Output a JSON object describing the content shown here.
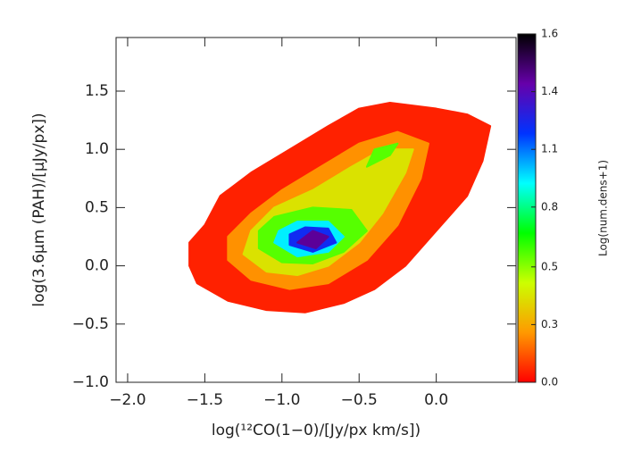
{
  "chart_data": {
    "type": "contour",
    "x_label": "log(¹²CO(1−0)/[Jy/px km/s])",
    "y_label": "log(3.6μm (PAH)/[μJy/px])",
    "colorbar_label": "Log(num.dens+1)",
    "xlim": [
      -2.075,
      0.517
    ],
    "ylim": [
      -1.0,
      1.96
    ],
    "xticks": [
      {
        "value": -2.0,
        "label": "−2.0"
      },
      {
        "value": -1.5,
        "label": "−1.5"
      },
      {
        "value": -1.0,
        "label": "−1.0"
      },
      {
        "value": -0.5,
        "label": "−0.5"
      },
      {
        "value": 0,
        "label": "0.0"
      }
    ],
    "yticks": [
      {
        "value": -1.0,
        "label": "−1.0"
      },
      {
        "value": -0.5,
        "label": "−0.5"
      },
      {
        "value": 0,
        "label": "0.0"
      },
      {
        "value": 0.5,
        "label": "0.5"
      },
      {
        "value": 1.0,
        "label": "1.0"
      },
      {
        "value": 1.5,
        "label": "1.5"
      }
    ],
    "clim": [
      0,
      1.63
    ],
    "cticks": [
      {
        "value": 0,
        "label": "0.0"
      },
      {
        "value": 0.27,
        "label": "0.3"
      },
      {
        "value": 0.54,
        "label": "0.5"
      },
      {
        "value": 0.82,
        "label": "0.8"
      },
      {
        "value": 1.09,
        "label": "1.1"
      },
      {
        "value": 1.36,
        "label": "1.4"
      },
      {
        "value": 1.63,
        "label": "1.6"
      }
    ],
    "colormap": [
      "#ff0000",
      "#ff9900",
      "#ccff00",
      "#00ff00",
      "#00ffff",
      "#0033ff",
      "#6600aa",
      "#000000"
    ],
    "contours": [
      {
        "level": 0.05,
        "x": [
          -1.6,
          -1.55,
          -1.35,
          -1.1,
          -0.85,
          -0.6,
          -0.4,
          -0.2,
          0.0,
          0.2,
          0.3,
          0.35,
          0.2,
          0.0,
          -0.3,
          -0.5,
          -0.7,
          -0.95,
          -1.2,
          -1.4,
          -1.5,
          -1.6
        ],
        "y": [
          0.0,
          -0.15,
          -0.3,
          -0.38,
          -0.4,
          -0.32,
          -0.2,
          0.0,
          0.3,
          0.6,
          0.9,
          1.2,
          1.3,
          1.35,
          1.4,
          1.35,
          1.2,
          1.0,
          0.8,
          0.6,
          0.35,
          0.2
        ]
      },
      {
        "level": 0.22,
        "x": [
          -1.35,
          -1.2,
          -0.95,
          -0.7,
          -0.45,
          -0.25,
          -0.1,
          -0.05,
          -0.25,
          -0.5,
          -0.75,
          -1.0,
          -1.2,
          -1.35
        ],
        "y": [
          0.05,
          -0.12,
          -0.2,
          -0.15,
          0.05,
          0.35,
          0.75,
          1.05,
          1.15,
          1.05,
          0.85,
          0.65,
          0.45,
          0.25
        ]
      },
      {
        "level": 0.4,
        "x": [
          -1.25,
          -1.1,
          -0.9,
          -0.7,
          -0.5,
          -0.35,
          -0.2,
          -0.15,
          -0.35,
          -0.55,
          -0.8,
          -1.05,
          -1.2
        ],
        "y": [
          0.1,
          -0.05,
          -0.08,
          0.0,
          0.2,
          0.45,
          0.8,
          1.0,
          1.0,
          0.85,
          0.65,
          0.5,
          0.3
        ]
      },
      {
        "level": 0.6,
        "x": [
          -1.15,
          -1.0,
          -0.8,
          -0.6,
          -0.45,
          -0.55,
          -0.8,
          -1.05,
          -1.15
        ],
        "y": [
          0.15,
          0.03,
          0.02,
          0.12,
          0.3,
          0.48,
          0.5,
          0.42,
          0.3
        ]
      },
      {
        "level": 0.6,
        "x": [
          -0.45,
          -0.3,
          -0.25,
          -0.4
        ],
        "y": [
          0.85,
          0.95,
          1.05,
          1.0
        ]
      },
      {
        "level": 0.95,
        "x": [
          -1.05,
          -0.9,
          -0.7,
          -0.6,
          -0.7,
          -0.9,
          -1.02
        ],
        "y": [
          0.2,
          0.08,
          0.12,
          0.25,
          0.38,
          0.38,
          0.3
        ]
      },
      {
        "level": 1.2,
        "x": [
          -0.95,
          -0.8,
          -0.65,
          -0.7,
          -0.85,
          -0.95
        ],
        "y": [
          0.18,
          0.12,
          0.2,
          0.32,
          0.33,
          0.27
        ]
      },
      {
        "level": 1.42,
        "x": [
          -0.9,
          -0.78,
          -0.7,
          -0.8
        ],
        "y": [
          0.2,
          0.15,
          0.25,
          0.3
        ]
      }
    ]
  }
}
